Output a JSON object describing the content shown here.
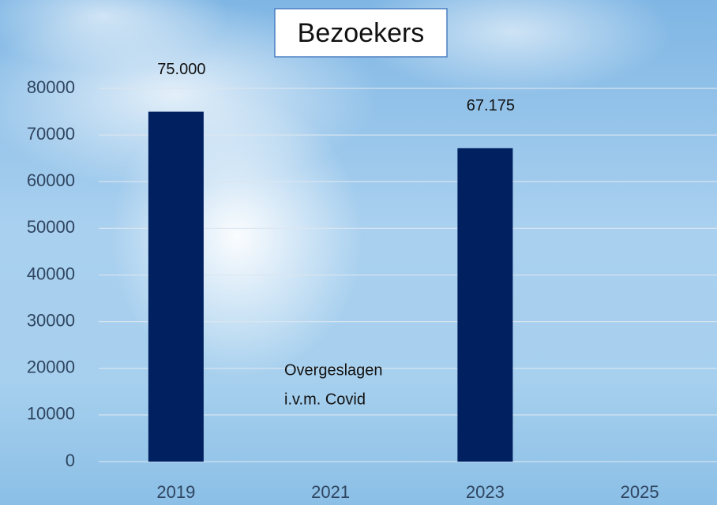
{
  "chart_data": {
    "type": "bar",
    "title": "Bezoekers",
    "categories": [
      "2019",
      "2021",
      "2023",
      "2025"
    ],
    "values": [
      75000,
      null,
      67175,
      null
    ],
    "value_labels": [
      "75.000",
      null,
      "67.175",
      null
    ],
    "annotations": [
      "Overgeslagen",
      "i.v.m. Covid"
    ],
    "color": "#002060",
    "ylim": [
      0,
      80000
    ],
    "yticks": [
      0,
      10000,
      20000,
      30000,
      40000,
      50000,
      60000,
      70000,
      80000
    ],
    "grid": true
  }
}
